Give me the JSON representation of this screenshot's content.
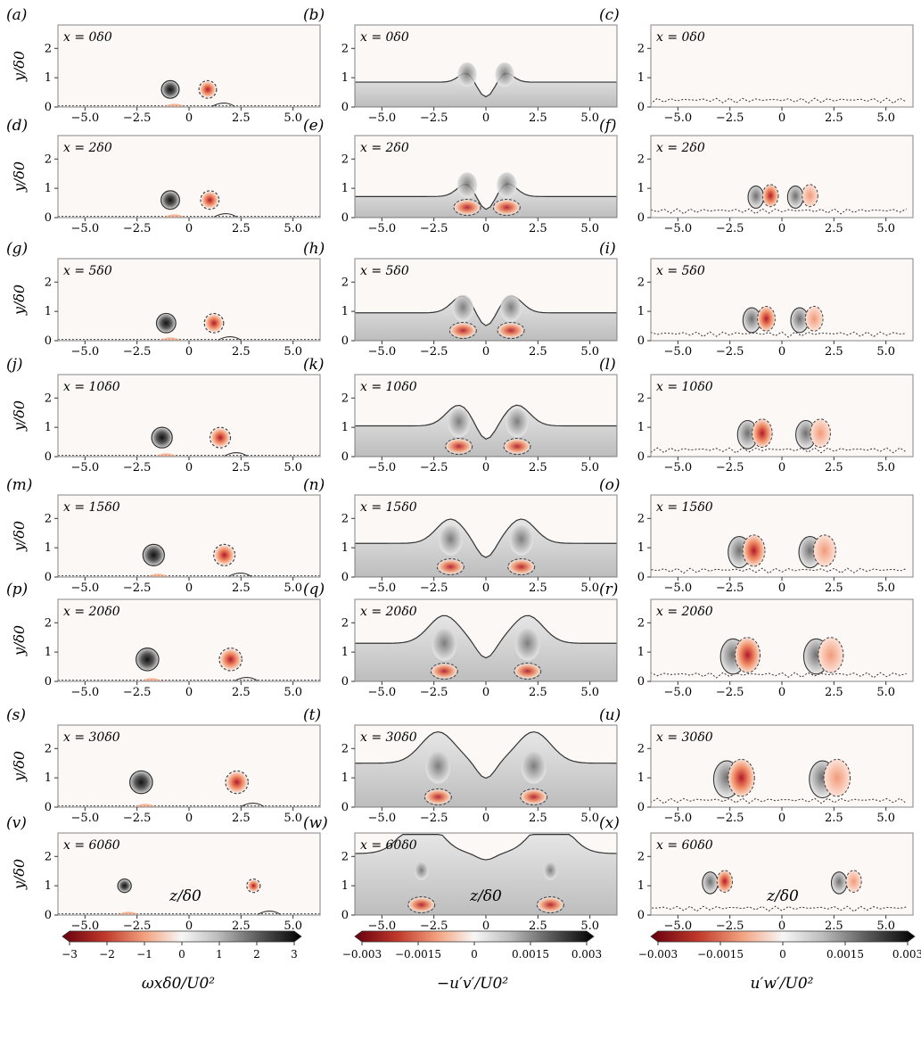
{
  "figure": {
    "row_labels": [
      [
        "(a)",
        "(b)",
        "(c)"
      ],
      [
        "(d)",
        "(e)",
        "(f)"
      ],
      [
        "(g)",
        "(h)",
        "(i)"
      ],
      [
        "(j)",
        "(k)",
        "(l)"
      ],
      [
        "(m)",
        "(n)",
        "(o)"
      ],
      [
        "(p)",
        "(q)",
        "(r)"
      ],
      [
        "(s)",
        "(t)",
        "(u)"
      ],
      [
        "(v)",
        "(w)",
        "(x)"
      ]
    ],
    "x_station_labels": [
      "x = 0δ0",
      "x = 2δ0",
      "x = 5δ0",
      "x = 10δ0",
      "x = 15δ0",
      "x = 20δ0",
      "x = 30δ0",
      "x = 60δ0"
    ],
    "ylabel": "y/δ0",
    "xlabel": "z/δ0",
    "colorbars": [
      {
        "label": "ωxδ0/U0²",
        "ticks": [
          "−3",
          "−2",
          "−1",
          "0",
          "1",
          "2",
          "3"
        ],
        "range": [
          -3,
          3
        ]
      },
      {
        "label": "−u′v′/U0²",
        "ticks": [
          "−0.003",
          "−0.0015",
          "0",
          "0.0015",
          "0.003"
        ],
        "range": [
          -0.003,
          0.003
        ]
      },
      {
        "label": "u′w′/U0²",
        "ticks": [
          "−0.003",
          "−0.0015",
          "0",
          "0.0015",
          "0.003"
        ],
        "range": [
          -0.003,
          0.003
        ]
      }
    ],
    "colors": {
      "negative": "#8b0a18",
      "mid_negative": "#f4a582",
      "zero": "#fbf8f6",
      "positive": "#111111",
      "frame": "#999999"
    }
  },
  "chart_data": {
    "type": "heatmap",
    "layout": "8 rows × 3 columns of contour panels",
    "xlim": [
      -6.3,
      6.3
    ],
    "ylim": [
      0,
      2.8
    ],
    "x_ticks": [
      -5.0,
      -2.5,
      0,
      2.5,
      5.0
    ],
    "x_tick_labels": [
      "−5.0",
      "−2.5",
      "0",
      "2.5",
      "5.0"
    ],
    "y_ticks": [
      0,
      1,
      2
    ],
    "y_tick_labels": [
      "0",
      "1",
      "2"
    ],
    "stations_x_over_delta0": [
      0,
      2,
      5,
      10,
      15,
      20,
      30,
      60
    ],
    "vortex_pair": [
      {
        "x": 0,
        "z_left": -0.9,
        "z_right": 0.9,
        "y": 0.6,
        "r": 0.38
      },
      {
        "x": 2,
        "z_left": -0.9,
        "z_right": 1.0,
        "y": 0.6,
        "r": 0.4
      },
      {
        "x": 5,
        "z_left": -1.1,
        "z_right": 1.2,
        "y": 0.6,
        "r": 0.42
      },
      {
        "x": 10,
        "z_left": -1.3,
        "z_right": 1.5,
        "y": 0.65,
        "r": 0.45
      },
      {
        "x": 15,
        "z_left": -1.7,
        "z_right": 1.7,
        "y": 0.75,
        "r": 0.47
      },
      {
        "x": 20,
        "z_left": -2.0,
        "z_right": 2.0,
        "y": 0.75,
        "r": 0.5
      },
      {
        "x": 30,
        "z_left": -2.3,
        "z_right": 2.3,
        "y": 0.85,
        "r": 0.5
      },
      {
        "x": 60,
        "z_left": -3.1,
        "z_right": 3.1,
        "y": 1.0,
        "r": 0.28
      }
    ],
    "boundary_layer_edge_y": [
      0.85,
      0.72,
      0.95,
      1.05,
      1.15,
      1.3,
      1.5,
      2.1
    ]
  }
}
